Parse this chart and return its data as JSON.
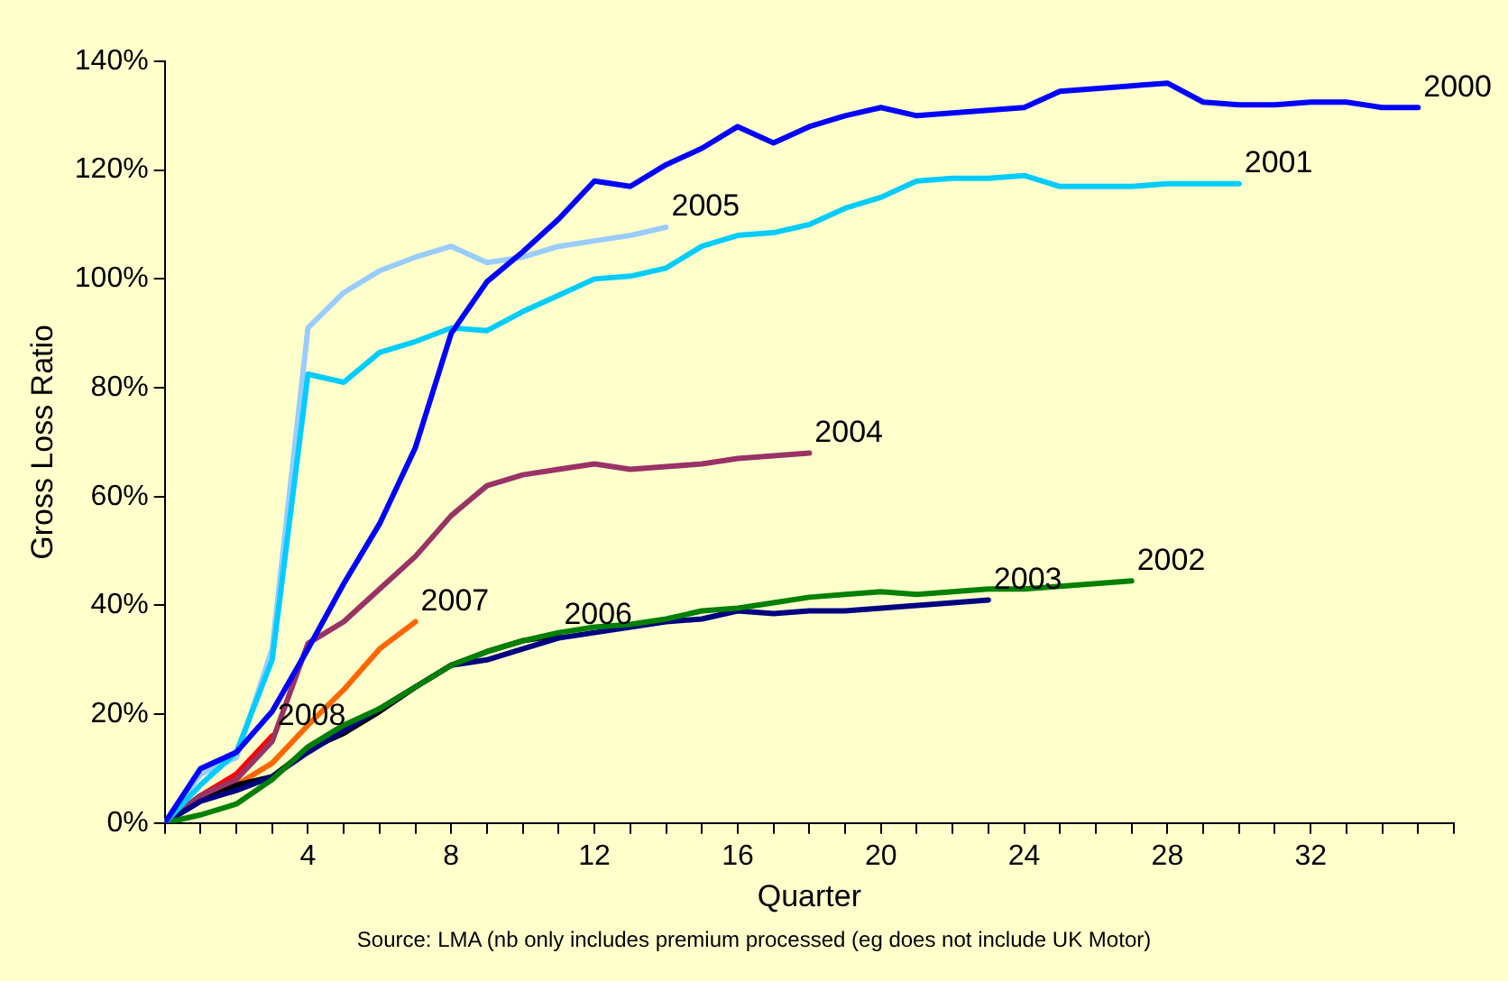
{
  "chart_data": {
    "type": "line",
    "xlabel": "Quarter",
    "ylabel": "Gross Loss Ratio",
    "marker": "none",
    "grid": false,
    "legend": false,
    "xlim": [
      0,
      36
    ],
    "xticks": [
      {
        "value": 0,
        "label": null
      },
      {
        "value": 1,
        "label": null
      },
      {
        "value": 2,
        "label": null
      },
      {
        "value": 3,
        "label": null
      },
      4,
      {
        "value": 5,
        "label": null
      },
      {
        "value": 6,
        "label": null
      },
      {
        "value": 7,
        "label": null
      },
      8,
      {
        "value": 9,
        "label": null
      },
      {
        "value": 10,
        "label": null
      },
      {
        "value": 11,
        "label": null
      },
      12,
      {
        "value": 13,
        "label": null
      },
      {
        "value": 14,
        "label": null
      },
      {
        "value": 15,
        "label": null
      },
      16,
      {
        "value": 17,
        "label": null
      },
      {
        "value": 18,
        "label": null
      },
      {
        "value": 19,
        "label": null
      },
      20,
      {
        "value": 21,
        "label": null
      },
      {
        "value": 22,
        "label": null
      },
      {
        "value": 23,
        "label": null
      },
      24,
      {
        "value": 25,
        "label": null
      },
      {
        "value": 26,
        "label": null
      },
      {
        "value": 27,
        "label": null
      },
      28,
      {
        "value": 29,
        "label": null
      },
      {
        "value": 30,
        "label": null
      },
      {
        "value": 31,
        "label": null
      },
      32,
      {
        "value": 33,
        "label": null
      },
      {
        "value": 34,
        "label": null
      },
      {
        "value": 35,
        "label": null
      },
      {
        "value": 36,
        "label": null
      }
    ],
    "ylim": [
      0,
      140
    ],
    "yticks": [
      {
        "value": 0,
        "label": "0%"
      },
      {
        "value": 20,
        "label": "20%"
      },
      {
        "value": 40,
        "label": "40%"
      },
      {
        "value": 60,
        "label": "60%"
      },
      {
        "value": 80,
        "label": "80%"
      },
      {
        "value": 100,
        "label": "100%"
      },
      {
        "value": 120,
        "label": "120%"
      },
      {
        "value": 140,
        "label": "140%"
      }
    ],
    "series": [
      {
        "name": "2000",
        "color": "#0000ff",
        "x": [
          0,
          1,
          2,
          3,
          4,
          5,
          6,
          7,
          8,
          9,
          10,
          11,
          12,
          13,
          14,
          15,
          16,
          17,
          18,
          19,
          20,
          21,
          22,
          23,
          24,
          25,
          26,
          27,
          28,
          29,
          30,
          31,
          32,
          33,
          34,
          35
        ],
        "values": [
          0,
          10,
          13,
          20.5,
          32,
          44,
          55,
          69,
          90,
          99.5,
          105,
          111,
          118,
          117,
          121,
          124,
          128,
          125,
          128,
          130,
          131.5,
          130,
          130.5,
          131,
          131.5,
          134.5,
          135,
          135.5,
          136,
          132.5,
          132,
          132,
          132.5,
          132.5,
          131.5,
          131.5
        ]
      },
      {
        "name": "2001",
        "color": "#00ccff",
        "x": [
          0,
          1,
          2,
          3,
          4,
          5,
          6,
          7,
          8,
          9,
          10,
          11,
          12,
          13,
          14,
          15,
          16,
          17,
          18,
          19,
          20,
          21,
          22,
          23,
          24,
          25,
          26,
          27,
          28,
          29,
          30
        ],
        "values": [
          0,
          7,
          13,
          30,
          82.5,
          81,
          86.5,
          88.5,
          91,
          90.5,
          94,
          97,
          100,
          100.5,
          102,
          106,
          108,
          108.5,
          110,
          113,
          115,
          118,
          118.5,
          118.5,
          119,
          117,
          117,
          117,
          117.5,
          117.5,
          117.5
        ]
      },
      {
        "name": "2002",
        "color": "#008000",
        "x": [
          0,
          1,
          2,
          3,
          4,
          5,
          6,
          7,
          8,
          9,
          10,
          11,
          12,
          13,
          14,
          15,
          16,
          17,
          18,
          19,
          20,
          21,
          22,
          23,
          24,
          25,
          26,
          27
        ],
        "values": [
          0,
          1.5,
          3.5,
          8,
          14,
          18,
          21,
          25,
          29,
          31.5,
          33.5,
          35,
          36,
          36.5,
          37.5,
          39,
          39.5,
          40.5,
          41.5,
          42,
          42.5,
          42,
          42.5,
          43,
          43,
          43.5,
          44,
          44.5
        ]
      },
      {
        "name": "2003",
        "color": "#000080",
        "x": [
          0,
          1,
          2,
          3,
          4,
          5,
          6,
          7,
          8,
          9,
          10,
          11,
          12,
          13,
          14,
          15,
          16,
          17,
          18,
          19,
          20,
          21,
          22,
          23
        ],
        "values": [
          0,
          4,
          6,
          8.5,
          13,
          17,
          21,
          25,
          29,
          30,
          32,
          34,
          35,
          36,
          37,
          37.5,
          39,
          38.5,
          39,
          39,
          39.5,
          40,
          40.5,
          41
        ]
      },
      {
        "name": "2004",
        "color": "#993366",
        "x": [
          0,
          1,
          2,
          3,
          4,
          5,
          6,
          7,
          8,
          9,
          10,
          11,
          12,
          13,
          14,
          15,
          16,
          17,
          18
        ],
        "values": [
          0,
          5,
          8,
          15,
          33,
          37,
          43,
          49,
          56.5,
          62,
          64,
          65,
          66,
          65,
          65.5,
          66,
          67,
          67.5,
          68
        ]
      },
      {
        "name": "2005",
        "color": "#99ccff",
        "x": [
          0,
          1,
          2,
          3,
          4,
          5,
          6,
          7,
          8,
          9,
          10,
          11,
          12,
          13,
          14
        ],
        "values": [
          0,
          9,
          12,
          32,
          91,
          97.5,
          101.5,
          104,
          106,
          103,
          104,
          106,
          107,
          108,
          109.5
        ]
      },
      {
        "name": "2006",
        "color": "#000000",
        "x": [
          0,
          1,
          2,
          3,
          4,
          5,
          6,
          7,
          8,
          9,
          10,
          11
        ],
        "values": [
          0,
          5,
          7,
          8.5,
          13.5,
          16.5,
          20.5,
          25,
          29,
          31.5,
          33.5,
          34.5
        ]
      },
      {
        "name": "2007",
        "color": "#ff6600",
        "x": [
          0,
          1,
          2,
          3,
          4,
          5,
          6,
          7
        ],
        "values": [
          0,
          5,
          7,
          11,
          18,
          24.5,
          32,
          37
        ]
      },
      {
        "name": "2008",
        "color": "#ff0000",
        "x": [
          0,
          1,
          2,
          3
        ],
        "values": [
          0,
          5,
          9,
          16
        ]
      }
    ],
    "annotations": [
      "Source: LMA (nb only includes premium processed (eg does not include UK Motor)"
    ]
  }
}
